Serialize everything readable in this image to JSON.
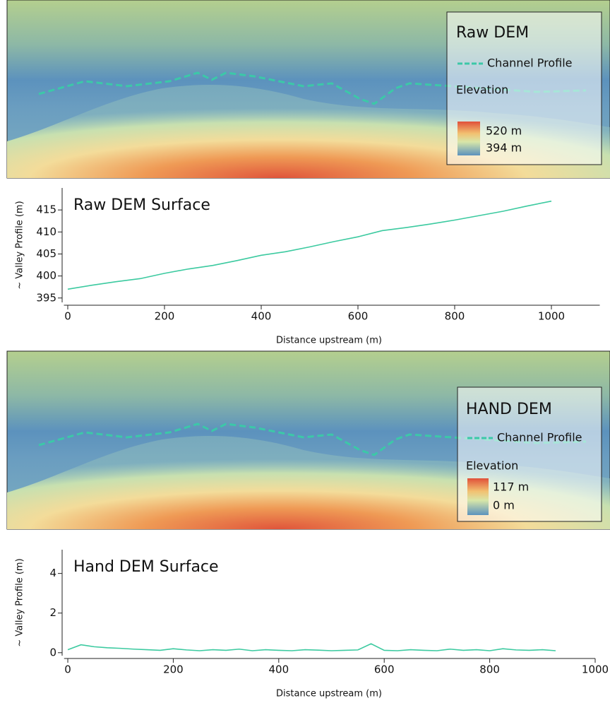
{
  "maps": [
    {
      "title": "Raw DEM",
      "line_label": "Channel Profile",
      "colorbar_title": "Elevation",
      "max_label": "520 m",
      "min_label": "394 m"
    },
    {
      "title": "HAND DEM",
      "line_label": "Channel Profile",
      "colorbar_title": "Elevation",
      "max_label": "117 m",
      "min_label": "0 m"
    }
  ],
  "chart_data": [
    {
      "type": "line",
      "title": "Raw DEM Surface",
      "xlabel": "Distance upstream (m)",
      "ylabel": "~ Valley Profile (m)",
      "x": [
        0,
        50,
        100,
        150,
        200,
        250,
        300,
        350,
        400,
        450,
        500,
        550,
        600,
        650,
        700,
        750,
        800,
        850,
        900,
        950,
        1000
      ],
      "series": [
        {
          "color": "#3ccaa0",
          "values": [
            397,
            397.9,
            398.7,
            399.4,
            400.6,
            401.6,
            402.4,
            403.5,
            404.7,
            405.5,
            406.6,
            407.8,
            408.9,
            410.3,
            411,
            411.8,
            412.7,
            413.7,
            414.7,
            415.9,
            417
          ]
        }
      ],
      "xlim": [
        -8,
        1100
      ],
      "ylim": [
        394,
        420
      ],
      "xticks": [
        0,
        200,
        400,
        600,
        800,
        1000
      ],
      "yticks": [
        395,
        400,
        405,
        410,
        415
      ]
    },
    {
      "type": "line",
      "title": "Hand DEM Surface",
      "xlabel": "Distance upstream (m)",
      "ylabel": "~ Valley Profile (m)",
      "x": [
        0,
        25,
        50,
        75,
        100,
        125,
        150,
        175,
        200,
        225,
        250,
        275,
        300,
        325,
        350,
        375,
        400,
        425,
        450,
        475,
        500,
        525,
        550,
        575,
        600,
        625,
        650,
        675,
        700,
        725,
        750,
        775,
        800,
        825,
        850,
        875,
        900,
        925
      ],
      "series": [
        {
          "color": "#3ccaa0",
          "values": [
            0.15,
            0.4,
            0.3,
            0.25,
            0.22,
            0.18,
            0.15,
            0.12,
            0.2,
            0.14,
            0.1,
            0.15,
            0.12,
            0.18,
            0.1,
            0.15,
            0.12,
            0.1,
            0.15,
            0.13,
            0.1,
            0.12,
            0.14,
            0.45,
            0.12,
            0.1,
            0.15,
            0.12,
            0.1,
            0.18,
            0.12,
            0.15,
            0.1,
            0.2,
            0.14,
            0.12,
            0.15,
            0.1
          ]
        }
      ],
      "xlim": [
        -7,
        1000
      ],
      "ylim": [
        -0.15,
        5.2
      ],
      "xticks": [
        0,
        200,
        400,
        600,
        800,
        1000
      ],
      "yticks": [
        0,
        2,
        4
      ]
    }
  ]
}
